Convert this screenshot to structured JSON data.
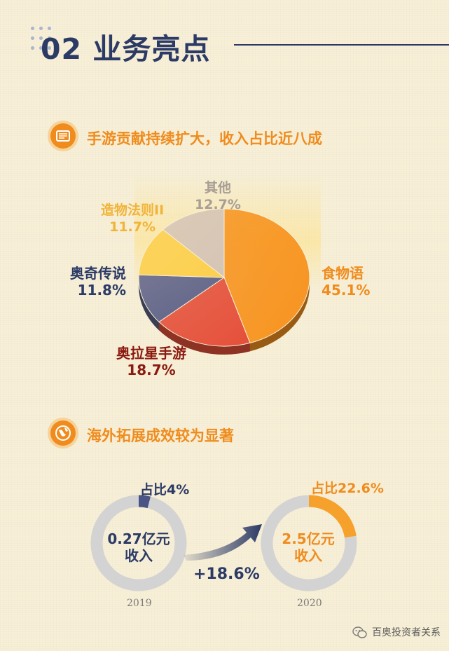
{
  "header": {
    "title": "02 业务亮点"
  },
  "section1": {
    "title": "手游贡献持续扩大，收入占比近八成"
  },
  "section2": {
    "title": "海外拓展成效较为显著"
  },
  "chart_data": [
    {
      "type": "pie",
      "title": "",
      "series": [
        {
          "name": "食物语",
          "value": 45.1,
          "label": "45.1%",
          "color": "#f7931e"
        },
        {
          "name": "奥拉星手游",
          "value": 18.7,
          "label": "18.7%",
          "color": "#e5503a"
        },
        {
          "name": "奥奇传说",
          "value": 11.8,
          "label": "11.8%",
          "color": "#5f6288"
        },
        {
          "name": "造物法则II",
          "value": 11.7,
          "label": "11.7%",
          "color": "#fcd04f"
        },
        {
          "name": "其他",
          "value": 12.7,
          "label": "12.7%",
          "color": "#d6c5b6"
        }
      ]
    },
    {
      "type": "pie",
      "title": "",
      "year": "2019",
      "center_label": "0.27亿元\n收入",
      "series": [
        {
          "name": "占比",
          "value": 4,
          "label": "占比4%",
          "color": "#4a5585"
        },
        {
          "name": "",
          "value": 96,
          "color": "#d3d3d3"
        }
      ]
    },
    {
      "type": "pie",
      "title": "",
      "year": "2020",
      "center_label": "2.5亿元\n收入",
      "series": [
        {
          "name": "占比",
          "value": 22.6,
          "label": "占比22.6%",
          "color": "#f5a12b"
        },
        {
          "name": "",
          "value": 77.4,
          "color": "#d3d3d3"
        }
      ]
    }
  ],
  "pie_labels": {
    "shiwuyu": {
      "name": "食物语",
      "pct": "45.1%"
    },
    "aolaxing": {
      "name": "奥拉星手游",
      "pct": "18.7%"
    },
    "aoqi": {
      "name": "奥奇传说",
      "pct": "11.8%"
    },
    "zaowu": {
      "name": "造物法则II",
      "pct": "11.7%"
    },
    "other": {
      "name": "其他",
      "pct": "12.7%"
    }
  },
  "donut2019": {
    "share": "占比4%",
    "amount": "0.27亿元",
    "unit": "收入",
    "year": "2019"
  },
  "donut2020": {
    "share": "占比22.6%",
    "amount": "2.5亿元",
    "unit": "收入",
    "year": "2020"
  },
  "growth": "+18.6%",
  "watermark": "百奥投资者关系",
  "colors": {
    "background": "#f7efd6",
    "navy": "#2c3a66",
    "orange": "#f08c1e",
    "maroon": "#8b1a10",
    "gold": "#f2b437",
    "grey": "#a89e93"
  }
}
